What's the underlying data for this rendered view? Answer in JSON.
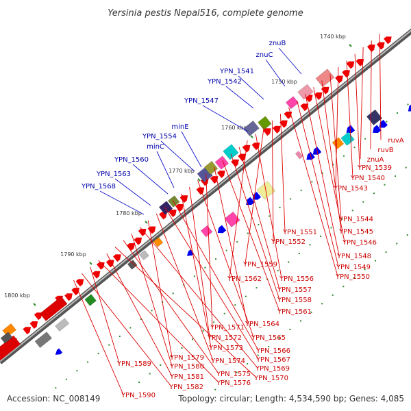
{
  "title": "Yersinia pestis Nepal516, complete genome",
  "footer": {
    "accession": "Accession: NC_008149",
    "summary": "Topology: circular; Length: 4,534,590 bp; Genes: 4,085"
  },
  "colors": {
    "forward_cds": "#ee0000",
    "reverse_cds": "#0000ee",
    "forward_label": "#cc0000",
    "reverse_label": "#0000aa",
    "backbone": "#777777",
    "tick": "#2a8a2a"
  },
  "scale_labels": [
    "1740 kbp",
    "1750 kbp",
    "1760 kbp",
    "1770 kbp",
    "1780 kbp",
    "1790 kbp",
    "1800 kbp"
  ],
  "reverse_strand_genes": [
    "znuB",
    "znuC",
    "YPN_1541",
    "YPN_1542",
    "YPN_1547",
    "minE",
    "YPN_1554",
    "minC",
    "YPN_1560",
    "YPN_1563",
    "YPN_1568"
  ],
  "forward_strand_genes": [
    "ruvA",
    "ruvB",
    "znuA",
    "YPN_1539",
    "YPN_1540",
    "YPN_1543",
    "YPN_1544",
    "YPN_1545",
    "YPN_1546",
    "YPN_1548",
    "YPN_1549",
    "YPN_1550",
    "YPN_1551",
    "YPN_1552",
    "YPN_1559",
    "YPN_1556",
    "YPN_1562",
    "YPN_1557",
    "YPN_1558",
    "YPN_1561",
    "YPN_1564",
    "YPN_1571",
    "YPN_1565",
    "YPN_1572",
    "YPN_1573",
    "YPN_1566",
    "YPN_1567",
    "YPN_1574",
    "YPN_1579",
    "YPN_1569",
    "YPN_1580",
    "YPN_1575",
    "YPN_1570",
    "YPN_1581",
    "YPN_1576",
    "YPN_1589",
    "YPN_1582",
    "YPN_1590"
  ]
}
